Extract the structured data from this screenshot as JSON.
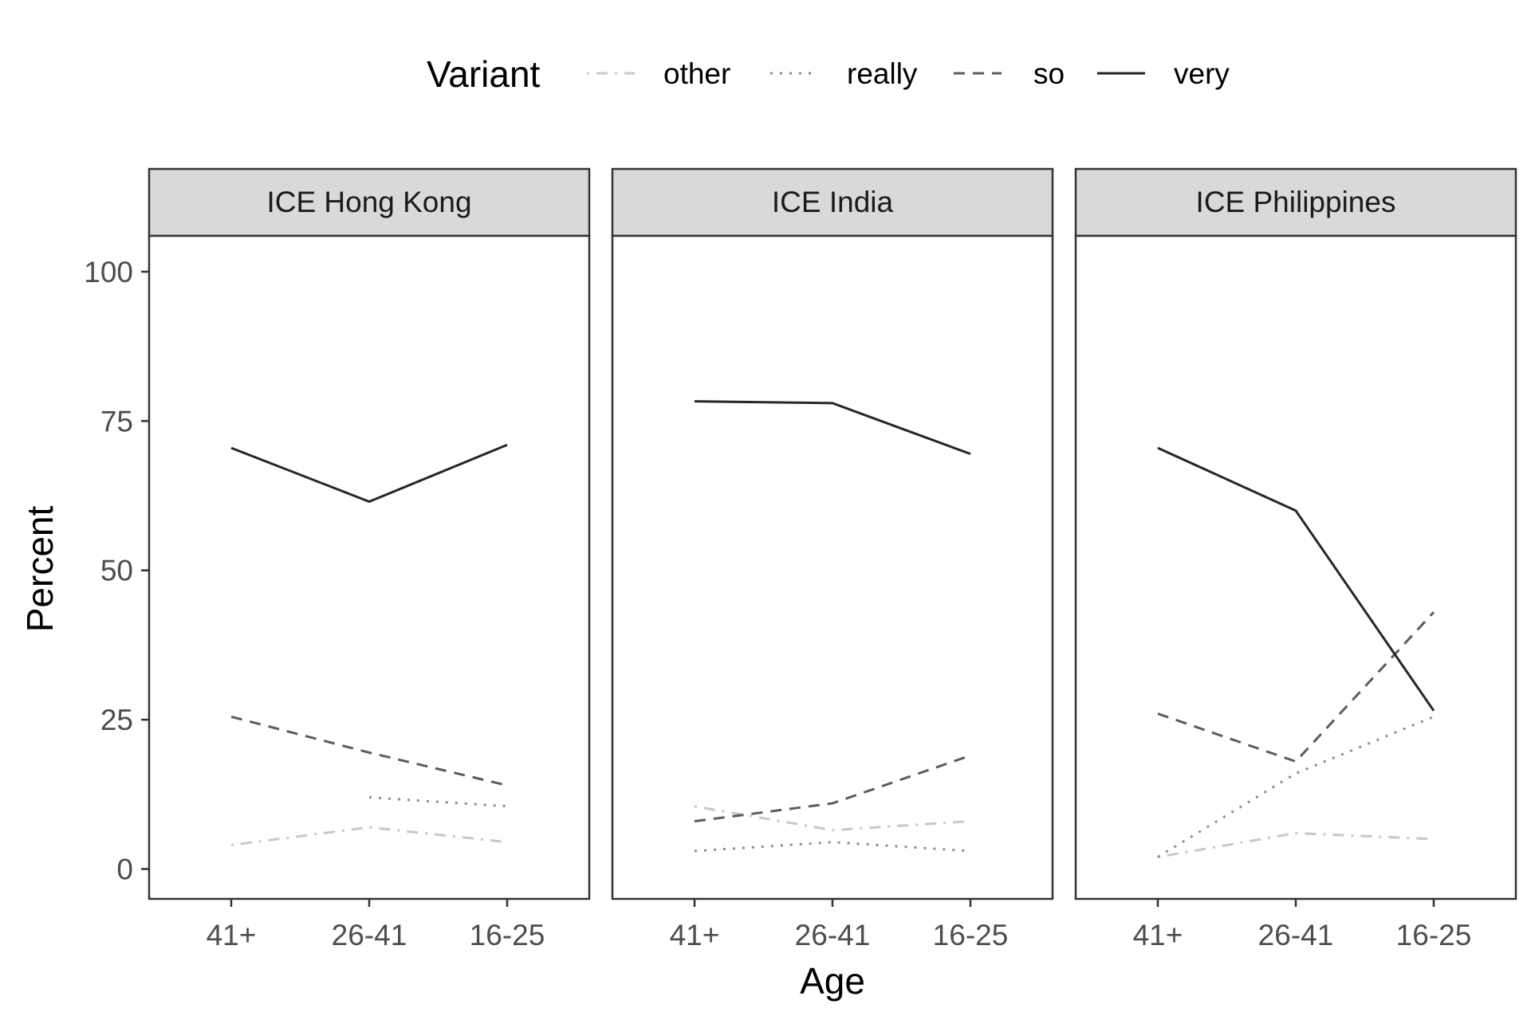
{
  "chart_data": {
    "type": "line",
    "xlabel": "Age",
    "ylabel": "Percent",
    "ylim": [
      -5,
      106
    ],
    "y_ticks": [
      "0",
      "25",
      "50",
      "75",
      "100"
    ],
    "categories": [
      "41+",
      "26-41",
      "16-25"
    ],
    "grid": false,
    "legend": {
      "title": "Variant",
      "placement": "top",
      "entries": [
        {
          "name": "other",
          "color": "#c8c8c8",
          "dash": "dotdash"
        },
        {
          "name": "really",
          "color": "#8f8f8f",
          "dash": "dotted"
        },
        {
          "name": "so",
          "color": "#5c5c5c",
          "dash": "dashed"
        },
        {
          "name": "very",
          "color": "#262626",
          "dash": "solid"
        }
      ]
    },
    "panels": [
      {
        "title": "ICE Hong Kong",
        "series": [
          {
            "name": "very",
            "values": [
              70.5,
              61.5,
              71
            ]
          },
          {
            "name": "so",
            "values": [
              25.5,
              19.5,
              14
            ]
          },
          {
            "name": "really",
            "values": [
              null,
              12,
              10.5
            ]
          },
          {
            "name": "other",
            "values": [
              4,
              7,
              4.5
            ]
          }
        ]
      },
      {
        "title": "ICE India",
        "series": [
          {
            "name": "very",
            "values": [
              78.3,
              78,
              69.5
            ]
          },
          {
            "name": "so",
            "values": [
              8,
              11,
              19
            ]
          },
          {
            "name": "really",
            "values": [
              3,
              4.5,
              3
            ]
          },
          {
            "name": "other",
            "values": [
              10.5,
              6.5,
              8
            ]
          }
        ]
      },
      {
        "title": "ICE Philippines",
        "series": [
          {
            "name": "very",
            "values": [
              70.5,
              60,
              26.5
            ]
          },
          {
            "name": "so",
            "values": [
              26,
              18,
              43
            ]
          },
          {
            "name": "really",
            "values": [
              2,
              16,
              25.5
            ]
          },
          {
            "name": "other",
            "values": [
              2,
              6,
              5
            ]
          }
        ]
      }
    ]
  }
}
